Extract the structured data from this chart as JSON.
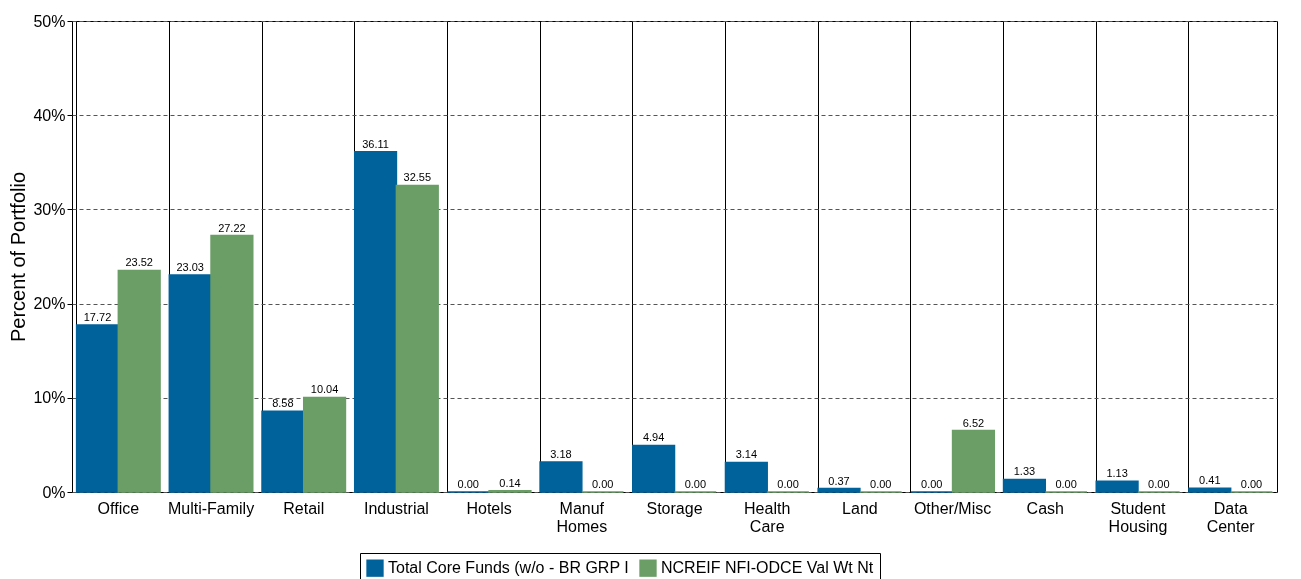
{
  "chart_data": {
    "type": "bar",
    "ylabel": "Percent of Portfolio",
    "categories": [
      "Office",
      "Multi-Family",
      "Retail",
      "Industrial",
      "Hotels",
      "Manuf Homes",
      "Storage",
      "Health Care",
      "Land",
      "Other/Misc",
      "Cash",
      "Student Housing",
      "Data Center"
    ],
    "series": [
      {
        "name": "Total Core Funds (w/o - BR GRP I",
        "color": "#00629b",
        "values": [
          17.72,
          23.03,
          8.58,
          36.11,
          0,
          3.18,
          4.94,
          3.14,
          0.37,
          0,
          1.33,
          1.13,
          0.41
        ],
        "value_labels": [
          "17.72",
          "23.03",
          "8.58",
          "36.11",
          "0.00",
          "3.18",
          "4.94",
          "3.14",
          "0.37",
          "0.00",
          "1.33",
          "1.13",
          "0.41"
        ]
      },
      {
        "name": "NCREIF NFI-ODCE Val Wt Nt",
        "color": "#6a9e66",
        "values": [
          23.52,
          27.22,
          10.04,
          32.55,
          0.14,
          0,
          0,
          0,
          0,
          6.52,
          0,
          0,
          0
        ],
        "value_labels": [
          "23.52",
          "27.22",
          "10.04",
          "32.55",
          "0.14",
          "0.00",
          "0.00",
          "0.00",
          "0.00",
          "6.52",
          "0.00",
          "0.00",
          "0.00"
        ]
      }
    ],
    "ylim": [
      0,
      50
    ],
    "yticks": [
      {
        "value": 0,
        "label": "0%"
      },
      {
        "value": 10,
        "label": "10%"
      },
      {
        "value": 20,
        "label": "20%"
      },
      {
        "value": 30,
        "label": "30%"
      },
      {
        "value": 40,
        "label": "40%"
      },
      {
        "value": 50,
        "label": "50%"
      }
    ],
    "grid": true,
    "legend": "bottom"
  }
}
